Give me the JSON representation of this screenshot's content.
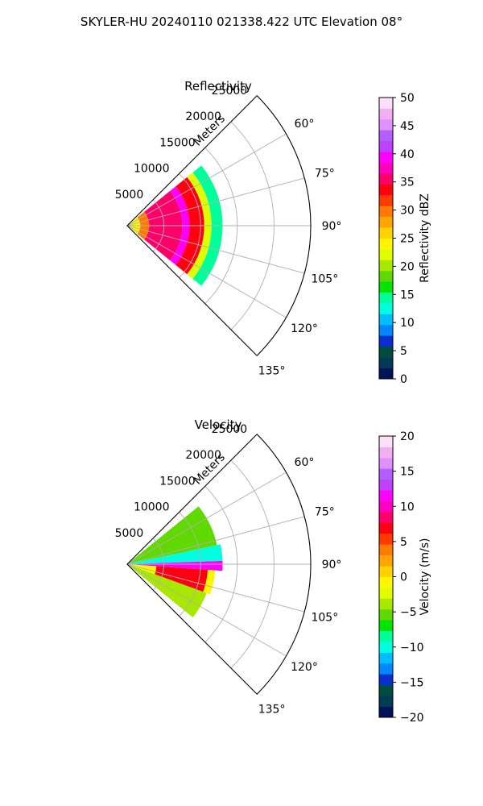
{
  "figure": {
    "title": "SKYLER-HU  20240110  021338.422 UTC Elevation 08°"
  },
  "chart_data": [
    {
      "type": "heatmap",
      "title": "Reflectivity",
      "range_unit_label": "Meters",
      "range_ticks": [
        5000,
        10000,
        15000,
        20000,
        25000
      ],
      "range_limit": [
        0,
        25000
      ],
      "azimuth_range_deg": [
        45,
        135
      ],
      "azimuth_ticks": [
        "60°",
        "75°",
        "90°",
        "105°",
        "120°",
        "135°"
      ],
      "grid": true,
      "data_extent_m": {
        "min_range": 0,
        "max_range": 13000,
        "azimuth_min": 51,
        "azimuth_max": 129
      },
      "colorbar": {
        "label": "Reflectivity dBZ",
        "min": 0,
        "max": 50,
        "ticks": [
          0,
          5,
          10,
          15,
          20,
          25,
          30,
          35,
          40,
          45,
          50
        ],
        "colors": [
          "#00125a",
          "#003a55",
          "#004c3e",
          "#0a2fd0",
          "#0086ff",
          "#00bfff",
          "#00ffe1",
          "#00ff9a",
          "#00e400",
          "#5fd900",
          "#a8e800",
          "#dfff00",
          "#fff600",
          "#ffd200",
          "#ffa500",
          "#ff7a00",
          "#ff3a00",
          "#ff0010",
          "#ff006a",
          "#ff00c0",
          "#ff00ff",
          "#c040ff",
          "#b060ff",
          "#e090ff",
          "#f0b0f0",
          "#fde0f8"
        ]
      },
      "bands": [
        {
          "from_m": 0,
          "to_m": 1800,
          "value_dbz": 27,
          "color": "#fff600"
        },
        {
          "from_m": 1800,
          "to_m": 3000,
          "value_dbz": 33,
          "color": "#ff7a00"
        },
        {
          "from_m": 3000,
          "to_m": 7500,
          "value_dbz": 37,
          "color": "#ff006a"
        },
        {
          "from_m": 7500,
          "to_m": 8500,
          "value_dbz": 43,
          "color": "#ff00ff"
        },
        {
          "from_m": 8500,
          "to_m": 10500,
          "value_dbz": 36,
          "color": "#ff0010"
        },
        {
          "from_m": 10500,
          "to_m": 11500,
          "value_dbz": 25,
          "color": "#dfff00"
        },
        {
          "from_m": 11500,
          "to_m": 13000,
          "value_dbz": 16,
          "color": "#00ff9a"
        }
      ]
    },
    {
      "type": "heatmap",
      "title": "Velocity",
      "range_unit_label": "Meters",
      "range_ticks": [
        5000,
        10000,
        15000,
        20000,
        25000
      ],
      "range_limit": [
        0,
        25000
      ],
      "azimuth_range_deg": [
        45,
        135
      ],
      "azimuth_ticks": [
        "60°",
        "75°",
        "90°",
        "105°",
        "120°",
        "135°"
      ],
      "grid": true,
      "data_extent_m": {
        "min_range": 0,
        "max_range": 13000,
        "azimuth_min": 51,
        "azimuth_max": 129
      },
      "colorbar": {
        "label": "Velocity (m/s)",
        "min": -20,
        "max": 20,
        "ticks": [
          -20,
          -15,
          -10,
          -5,
          0,
          5,
          10,
          15,
          20
        ],
        "colors": [
          "#00125a",
          "#003a55",
          "#004c3e",
          "#0a2fd0",
          "#0086ff",
          "#00bfff",
          "#00ffe1",
          "#00ff9a",
          "#00e400",
          "#5fd900",
          "#a8e800",
          "#dfff00",
          "#fff600",
          "#ffd200",
          "#ffa500",
          "#ff7a00",
          "#ff3a00",
          "#ff0010",
          "#ff006a",
          "#ff00c0",
          "#ff00ff",
          "#c040ff",
          "#b060ff",
          "#e090ff",
          "#f0b0f0",
          "#fde0f8"
        ]
      },
      "sectors": [
        {
          "az_from": 51,
          "az_to": 78,
          "from_m": 0,
          "to_m": 12500,
          "value_ms": -8,
          "color": "#5fd900"
        },
        {
          "az_from": 78,
          "az_to": 88,
          "from_m": 0,
          "to_m": 13000,
          "value_ms": -11,
          "color": "#00ffe1"
        },
        {
          "az_from": 88,
          "az_to": 94,
          "from_m": 0,
          "to_m": 13000,
          "value_ms": 14,
          "color": "#ff00ff"
        },
        {
          "az_from": 94,
          "az_to": 110,
          "from_m": 0,
          "to_m": 12000,
          "value_ms": 1,
          "color": "#fff600"
        },
        {
          "az_from": 94,
          "az_to": 110,
          "from_m": 4000,
          "to_m": 11000,
          "value_ms": 10,
          "color": "#ff0010"
        },
        {
          "az_from": 110,
          "az_to": 129,
          "from_m": 0,
          "to_m": 11500,
          "value_ms": -5,
          "color": "#a8e800"
        }
      ]
    }
  ]
}
